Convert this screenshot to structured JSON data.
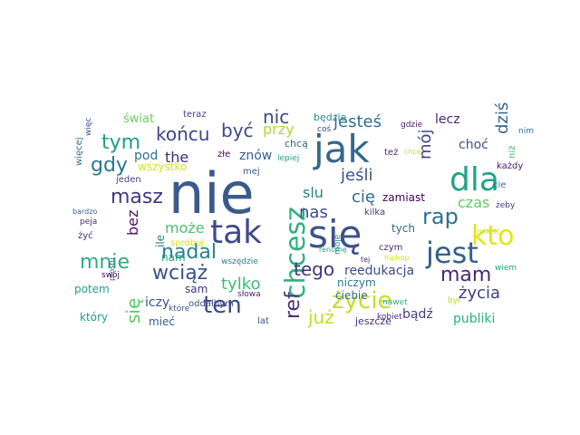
{
  "words": [
    {
      "text": "nie",
      "color": "#3b5a8c"
    },
    {
      "text": "jak",
      "color": "#31688e"
    },
    {
      "text": "się",
      "color": "#3b528b"
    },
    {
      "text": "dla",
      "color": "#20a486"
    },
    {
      "text": "tak",
      "color": "#3e4a89"
    },
    {
      "text": "chcesz",
      "color": "#2db27d"
    },
    {
      "text": "jest",
      "color": "#355f8d"
    },
    {
      "text": "kto",
      "color": "#e5e419"
    },
    {
      "text": "ten",
      "color": "#3f4788"
    },
    {
      "text": "życie",
      "color": "#c2df23"
    },
    {
      "text": "ref",
      "color": "#46327e"
    },
    {
      "text": "rap",
      "color": "#2c728e"
    },
    {
      "text": "mam",
      "color": "#482878"
    },
    {
      "text": "masz",
      "color": "#453781"
    },
    {
      "text": "tym",
      "color": "#1f9e89"
    },
    {
      "text": "gdy",
      "color": "#2a788e"
    },
    {
      "text": "mnie",
      "color": "#29af7f"
    },
    {
      "text": "wciąż",
      "color": "#3b528b"
    },
    {
      "text": "nadal",
      "color": "#26828e"
    },
    {
      "text": "tego",
      "color": "#46327e"
    },
    {
      "text": "końcu",
      "color": "#414487"
    },
    {
      "text": "być",
      "color": "#3e4989"
    },
    {
      "text": "nic",
      "color": "#3e4989"
    },
    {
      "text": "jesteś",
      "color": "#2c728e"
    },
    {
      "text": "jeśli",
      "color": "#39558c"
    },
    {
      "text": "już",
      "color": "#bddf26"
    },
    {
      "text": "życia",
      "color": "#423f85"
    },
    {
      "text": "tylko",
      "color": "#3fbc73"
    },
    {
      "text": "się",
      "color": "#5ec962"
    },
    {
      "text": "cię",
      "color": "#2e6e8e"
    },
    {
      "text": "nas",
      "color": "#3e4a89"
    },
    {
      "text": "slu",
      "color": "#25848e"
    },
    {
      "text": "mój",
      "color": "#414487"
    },
    {
      "text": "dziś",
      "color": "#33638d"
    },
    {
      "text": "the",
      "color": "#472c7a"
    },
    {
      "text": "przy",
      "color": "#addc30"
    },
    {
      "text": "bez",
      "color": "#471164"
    },
    {
      "text": "może",
      "color": "#48c16e"
    },
    {
      "text": "czas",
      "color": "#5ec962"
    },
    {
      "text": "reedukacja",
      "color": "#3e4a89"
    },
    {
      "text": "publiki",
      "color": "#2ab07f"
    },
    {
      "text": "bądź",
      "color": "#433e85"
    },
    {
      "text": "iczy",
      "color": "#3b528b"
    },
    {
      "text": "pod",
      "color": "#2b758e"
    },
    {
      "text": "znów",
      "color": "#34608d"
    },
    {
      "text": "lecz",
      "color": "#482475"
    },
    {
      "text": "choć",
      "color": "#3b528b"
    },
    {
      "text": "świat",
      "color": "#6ccd5a"
    },
    {
      "text": "wszystko",
      "color": "#d8e219"
    },
    {
      "text": "zamiast",
      "color": "#440154"
    },
    {
      "text": "tych",
      "color": "#31688e"
    },
    {
      "text": "ile",
      "color": "#277f8e"
    },
    {
      "text": "nam",
      "color": "#20a386"
    },
    {
      "text": "sam",
      "color": "#443983"
    },
    {
      "text": "potem",
      "color": "#20a386"
    },
    {
      "text": "który",
      "color": "#1f9e89"
    },
    {
      "text": "mieć",
      "color": "#34608d"
    },
    {
      "text": "ciebie",
      "color": "#31688e"
    },
    {
      "text": "niczym",
      "color": "#2a788e"
    },
    {
      "text": "jeszcze",
      "color": "#472c7a"
    },
    {
      "text": "oddałbym",
      "color": "#3b528b"
    },
    {
      "text": "lat",
      "color": "#3b528b"
    },
    {
      "text": "kilka",
      "color": "#46327e"
    },
    {
      "text": "będzie",
      "color": "#21918c"
    },
    {
      "text": "coś",
      "color": "#3e4a89"
    },
    {
      "text": "gdzie",
      "color": "#481c6e"
    },
    {
      "text": "chcą",
      "color": "#31688e"
    },
    {
      "text": "lepiej",
      "color": "#20a386"
    },
    {
      "text": "mej",
      "color": "#365d8d"
    },
    {
      "text": "złe",
      "color": "#440154"
    },
    {
      "text": "teraz",
      "color": "#414487"
    },
    {
      "text": "też",
      "color": "#482878"
    },
    {
      "text": "renomę",
      "color": "#22a884"
    },
    {
      "text": "spróbuj",
      "color": "#d2e21b"
    },
    {
      "text": "wszędzie",
      "color": "#24868e"
    },
    {
      "text": "słowa",
      "color": "#482878"
    },
    {
      "text": "które",
      "color": "#3b528b"
    },
    {
      "text": "jeden",
      "color": "#414487"
    },
    {
      "text": "bardzo",
      "color": "#33638d"
    },
    {
      "text": "peja",
      "color": "#472c7a"
    },
    {
      "text": "żyć",
      "color": "#46327e"
    },
    {
      "text": "swój",
      "color": "#440154"
    },
    {
      "text": "prostu",
      "color": "#38598c"
    },
    {
      "text": "więcej",
      "color": "#2e6e8e"
    },
    {
      "text": "więc",
      "color": "#3b528b"
    },
    {
      "text": "nim",
      "color": "#2c728e"
    },
    {
      "text": "niż",
      "color": "#3fbc73"
    },
    {
      "text": "cie",
      "color": "#2c728e"
    },
    {
      "text": "każdy",
      "color": "#481769"
    },
    {
      "text": "żeby",
      "color": "#443983"
    },
    {
      "text": "miłość",
      "color": "#bddf26"
    },
    {
      "text": "wiem",
      "color": "#22a884"
    },
    {
      "text": "kobiet",
      "color": "#482878"
    },
    {
      "text": "nawet",
      "color": "#29af7f"
    },
    {
      "text": "był",
      "color": "#b5de2b"
    },
    {
      "text": "hiphop",
      "color": "#d8e219"
    },
    {
      "text": "czym",
      "color": "#472c7a"
    },
    {
      "text": "tej",
      "color": "#472d7b"
    },
    {
      "text": "moje",
      "color": "#25848e"
    },
    {
      "text": "chce",
      "color": "#d2e21b"
    }
  ]
}
